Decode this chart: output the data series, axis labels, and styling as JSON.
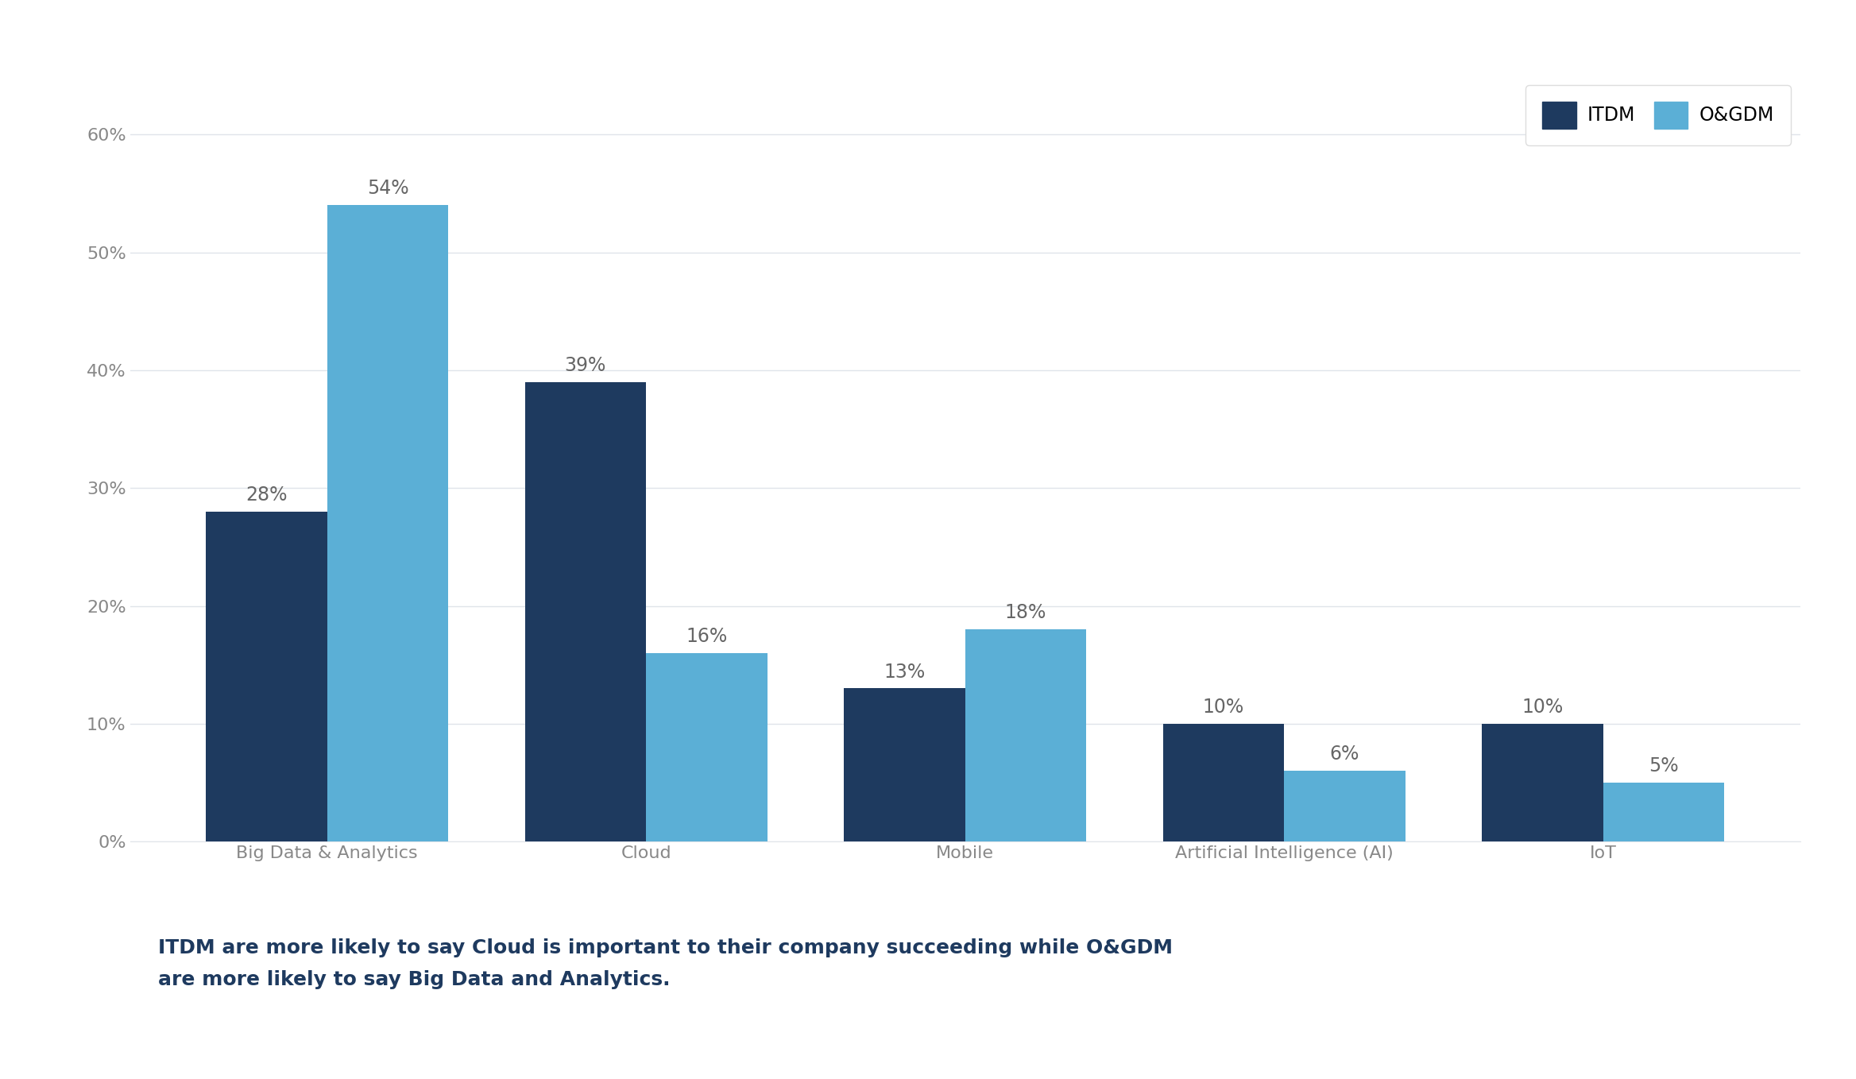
{
  "categories": [
    "Big Data & Analytics",
    "Cloud",
    "Mobile",
    "Artificial Intelligence (AI)",
    "IoT"
  ],
  "itdm_values": [
    28,
    39,
    13,
    10,
    10
  ],
  "ogdm_values": [
    54,
    16,
    18,
    6,
    5
  ],
  "itdm_color": "#1e3a5f",
  "ogdm_color": "#5bafd6",
  "background_color": "#ffffff",
  "ylim": [
    0,
    65
  ],
  "yticks": [
    0,
    10,
    20,
    30,
    40,
    50,
    60
  ],
  "ytick_labels": [
    "0%",
    "10%",
    "20%",
    "30%",
    "40%",
    "50%",
    "60%"
  ],
  "legend_labels": [
    "ITDM",
    "O&GDM"
  ],
  "bar_width": 0.38,
  "annotation_fontsize": 17,
  "tick_fontsize": 16,
  "legend_fontsize": 17,
  "caption": "ITDM are more likely to say Cloud is important to their company succeeding while O&GDM\nare more likely to say Big Data and Analytics.",
  "caption_fontsize": 18,
  "caption_color": "#1e3a5f",
  "grid_color": "#e0e4ea",
  "axis_label_color": "#888888"
}
